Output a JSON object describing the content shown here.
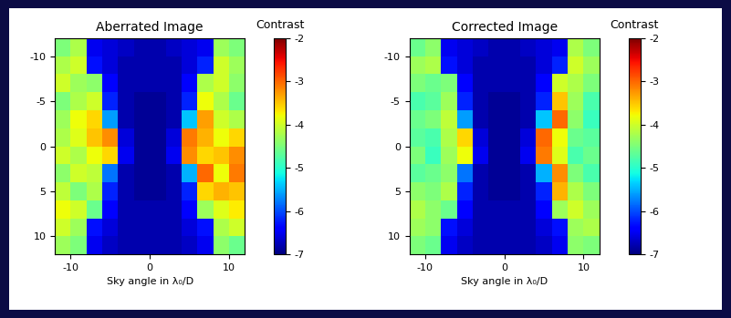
{
  "chart_data": [
    {
      "type": "heatmap",
      "title": "Aberrated Image",
      "xlabel": "Sky angle in λ₀/D",
      "color": "jet",
      "x": [
        -11,
        -9,
        -7,
        -5,
        -3,
        -1,
        1,
        3,
        5,
        7,
        9,
        11
      ],
      "y": [
        -11,
        -9,
        -7,
        -5,
        -3,
        -1,
        1,
        3,
        5,
        7,
        9,
        11
      ],
      "cells": [
        [
          -4.5,
          -4.2,
          -6.5,
          -6.6,
          -6.7,
          -6.8,
          -6.8,
          -6.7,
          -6.6,
          -6.5,
          -4.3,
          -4.5
        ],
        [
          -4.2,
          -4.0,
          -6.3,
          -6.6,
          -6.8,
          -6.8,
          -6.8,
          -6.8,
          -6.6,
          -6.2,
          -4.0,
          -4.3
        ],
        [
          -4.0,
          -4.3,
          -4.4,
          -6.4,
          -6.8,
          -6.8,
          -6.8,
          -6.8,
          -6.4,
          -4.2,
          -4.0,
          -4.4
        ],
        [
          -4.5,
          -4.2,
          -4.0,
          -6.2,
          -6.8,
          -6.9,
          -6.9,
          -6.8,
          -6.2,
          -3.8,
          -4.2,
          -4.6
        ],
        [
          -4.3,
          -3.8,
          -3.6,
          -5.6,
          -6.8,
          -6.9,
          -6.9,
          -6.8,
          -5.4,
          -3.3,
          -4.0,
          -4.2
        ],
        [
          -4.2,
          -3.9,
          -3.5,
          -3.2,
          -6.6,
          -6.9,
          -6.9,
          -6.6,
          -3.1,
          -3.4,
          -3.8,
          -3.6
        ],
        [
          -4.0,
          -4.2,
          -3.8,
          -3.6,
          -6.5,
          -6.9,
          -6.9,
          -6.5,
          -3.2,
          -3.6,
          -3.5,
          -3.2
        ],
        [
          -4.4,
          -4.0,
          -4.1,
          -5.8,
          -6.8,
          -6.9,
          -6.9,
          -6.8,
          -5.5,
          -3.0,
          -3.8,
          -3.1
        ],
        [
          -4.1,
          -4.5,
          -4.2,
          -6.2,
          -6.8,
          -6.9,
          -6.9,
          -6.8,
          -6.2,
          -3.6,
          -3.4,
          -3.5
        ],
        [
          -3.8,
          -4.0,
          -4.6,
          -6.4,
          -6.8,
          -6.8,
          -6.8,
          -6.8,
          -6.4,
          -4.3,
          -3.9,
          -3.7
        ],
        [
          -4.0,
          -4.3,
          -6.3,
          -6.6,
          -6.8,
          -6.8,
          -6.8,
          -6.8,
          -6.6,
          -6.3,
          -4.2,
          -4.0
        ],
        [
          -4.3,
          -4.5,
          -6.5,
          -6.7,
          -6.8,
          -6.8,
          -6.8,
          -6.8,
          -6.7,
          -6.5,
          -4.4,
          -4.6
        ]
      ],
      "xlim": [
        -12,
        12
      ],
      "ylim": [
        12,
        -12
      ],
      "xticks": [
        -10,
        0,
        10
      ],
      "yticks": [
        -10,
        -5,
        0,
        5,
        10
      ],
      "colorbar": {
        "label": "Contrast",
        "range": [
          -7,
          -2
        ],
        "ticks": [
          -2,
          -3,
          -4,
          -5,
          -6,
          -7
        ]
      }
    },
    {
      "type": "heatmap",
      "title": "Corrected Image",
      "xlabel": "Sky angle in λ₀/D",
      "color": "jet",
      "x": [
        -11,
        -9,
        -7,
        -5,
        -3,
        -1,
        1,
        3,
        5,
        7,
        9,
        11
      ],
      "y": [
        -11,
        -9,
        -7,
        -5,
        -3,
        -1,
        1,
        3,
        5,
        7,
        9,
        11
      ],
      "cells": [
        [
          -4.6,
          -4.4,
          -6.5,
          -6.6,
          -6.7,
          -6.8,
          -6.8,
          -6.7,
          -6.6,
          -6.5,
          -4.2,
          -4.5
        ],
        [
          -4.3,
          -4.2,
          -6.3,
          -6.6,
          -6.8,
          -6.8,
          -6.8,
          -6.8,
          -6.6,
          -6.2,
          -4.0,
          -4.3
        ],
        [
          -4.5,
          -4.6,
          -4.5,
          -6.4,
          -6.8,
          -6.8,
          -6.8,
          -6.8,
          -6.4,
          -4.0,
          -4.2,
          -4.5
        ],
        [
          -4.8,
          -4.7,
          -4.3,
          -6.2,
          -6.8,
          -6.9,
          -6.9,
          -6.8,
          -6.2,
          -3.5,
          -4.3,
          -4.8
        ],
        [
          -4.6,
          -4.5,
          -4.1,
          -5.6,
          -6.8,
          -6.9,
          -6.9,
          -6.8,
          -5.4,
          -3.0,
          -4.4,
          -4.9
        ],
        [
          -4.7,
          -4.8,
          -4.2,
          -3.6,
          -6.6,
          -6.9,
          -6.9,
          -6.6,
          -3.0,
          -3.8,
          -4.6,
          -4.7
        ],
        [
          -4.5,
          -4.9,
          -4.3,
          -3.8,
          -6.5,
          -6.9,
          -6.9,
          -6.5,
          -3.1,
          -3.9,
          -4.8,
          -4.6
        ],
        [
          -4.7,
          -4.6,
          -4.4,
          -5.8,
          -6.8,
          -6.9,
          -6.9,
          -6.8,
          -5.5,
          -3.2,
          -4.5,
          -4.8
        ],
        [
          -4.4,
          -4.5,
          -4.2,
          -6.2,
          -6.8,
          -6.9,
          -6.9,
          -6.8,
          -6.2,
          -3.4,
          -4.2,
          -4.5
        ],
        [
          -4.2,
          -4.4,
          -4.6,
          -6.4,
          -6.8,
          -6.8,
          -6.8,
          -6.8,
          -6.4,
          -4.3,
          -4.0,
          -4.3
        ],
        [
          -4.3,
          -4.4,
          -6.3,
          -6.6,
          -6.8,
          -6.8,
          -6.8,
          -6.8,
          -6.6,
          -6.3,
          -4.3,
          -4.2
        ],
        [
          -4.5,
          -4.6,
          -6.5,
          -6.7,
          -6.8,
          -6.8,
          -6.8,
          -6.8,
          -6.7,
          -6.5,
          -4.4,
          -4.5
        ]
      ],
      "xlim": [
        -12,
        12
      ],
      "ylim": [
        12,
        -12
      ],
      "xticks": [
        -10,
        0,
        10
      ],
      "yticks": [
        -10,
        -5,
        0,
        5,
        10
      ],
      "colorbar": {
        "label": "Contrast",
        "range": [
          -7,
          -2
        ],
        "ticks": [
          -2,
          -3,
          -4,
          -5,
          -6,
          -7
        ]
      }
    }
  ]
}
